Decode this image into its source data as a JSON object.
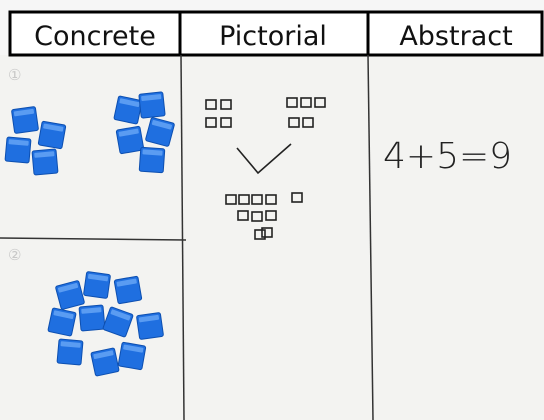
{
  "header": {
    "columns": [
      "Concrete",
      "Pictorial",
      "Abstract"
    ]
  },
  "concrete": {
    "labels": [
      "①",
      "②"
    ]
  },
  "abstract": {
    "equation": "4+5=9"
  }
}
